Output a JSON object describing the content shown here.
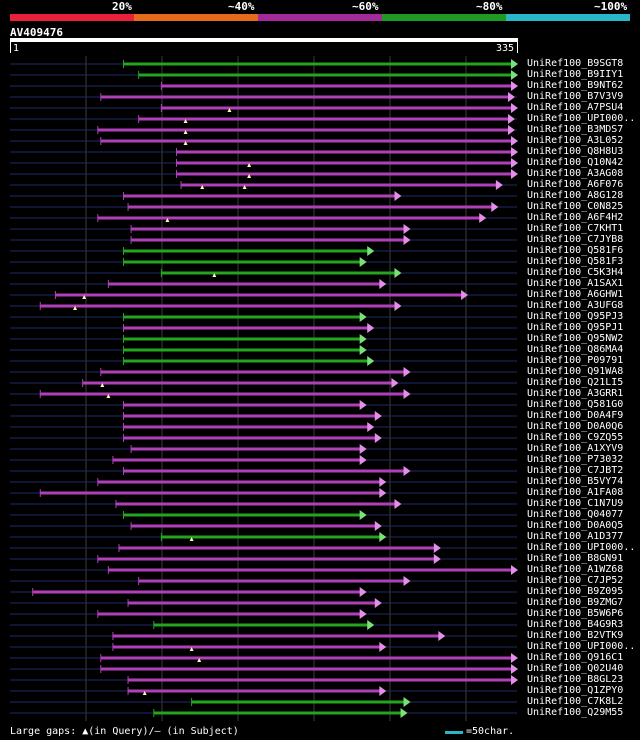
{
  "legend": {
    "segments": [
      {
        "label": "20%",
        "color": "#e8203a"
      },
      {
        "label": "~40%",
        "color": "#e46a1c"
      },
      {
        "label": "~60%",
        "color": "#a32a9a"
      },
      {
        "label": "~80%",
        "color": "#1f9a22"
      },
      {
        "label": "~100%",
        "color": "#29b6c6"
      }
    ]
  },
  "query": {
    "id": "AV409476",
    "start": "1",
    "end": "335"
  },
  "hits": [
    {
      "label": "UniRef100_B9SGT8",
      "color": "green",
      "start": 75,
      "end": 335,
      "gaps": []
    },
    {
      "label": "UniRef100_B9IIY1",
      "color": "green",
      "start": 85,
      "end": 335,
      "gaps": []
    },
    {
      "label": "UniRef100_B9NT62",
      "color": "magenta",
      "start": 100,
      "end": 335,
      "gaps": []
    },
    {
      "label": "UniRef100_B7V3V9",
      "color": "magenta",
      "start": 60,
      "end": 333,
      "gaps": []
    },
    {
      "label": "UniRef100_A7PSU4",
      "color": "magenta",
      "start": 100,
      "end": 335,
      "gaps": [
        145
      ]
    },
    {
      "label": "UniRef100_UPI000..",
      "color": "magenta",
      "start": 85,
      "end": 333,
      "gaps": [
        116
      ]
    },
    {
      "label": "UniRef100_B3MDS7",
      "color": "magenta",
      "start": 58,
      "end": 333,
      "gaps": [
        116
      ]
    },
    {
      "label": "UniRef100_A3L052",
      "color": "magenta",
      "start": 60,
      "end": 335,
      "gaps": [
        116
      ]
    },
    {
      "label": "UniRef100_Q8H8U3",
      "color": "magenta",
      "start": 110,
      "end": 335,
      "gaps": []
    },
    {
      "label": "UniRef100_Q10N42",
      "color": "magenta",
      "start": 110,
      "end": 335,
      "gaps": [
        158
      ]
    },
    {
      "label": "UniRef100_A3AG08",
      "color": "magenta",
      "start": 110,
      "end": 335,
      "gaps": [
        158
      ]
    },
    {
      "label": "UniRef100_A6F076",
      "color": "magenta",
      "start": 113,
      "end": 325,
      "gaps": [
        127,
        155
      ]
    },
    {
      "label": "UniRef100_A8G128",
      "color": "magenta",
      "start": 75,
      "end": 258,
      "gaps": []
    },
    {
      "label": "UniRef100_C0N825",
      "color": "magenta",
      "start": 78,
      "end": 322,
      "gaps": []
    },
    {
      "label": "UniRef100_A6F4H2",
      "color": "magenta",
      "start": 58,
      "end": 314,
      "gaps": [
        104
      ]
    },
    {
      "label": "UniRef100_C7KHT1",
      "color": "magenta",
      "start": 80,
      "end": 264,
      "gaps": []
    },
    {
      "label": "UniRef100_C7JYB8",
      "color": "magenta",
      "start": 80,
      "end": 264,
      "gaps": []
    },
    {
      "label": "UniRef100_Q581F6",
      "color": "green",
      "start": 75,
      "end": 240,
      "gaps": []
    },
    {
      "label": "UniRef100_Q581F3",
      "color": "green",
      "start": 75,
      "end": 235,
      "gaps": []
    },
    {
      "label": "UniRef100_C5K3H4",
      "color": "green",
      "start": 100,
      "end": 258,
      "gaps": [
        135
      ]
    },
    {
      "label": "UniRef100_A1SAX1",
      "color": "magenta",
      "start": 65,
      "end": 248,
      "gaps": []
    },
    {
      "label": "UniRef100_A6GHW1",
      "color": "magenta",
      "start": 30,
      "end": 302,
      "gaps": [
        49
      ]
    },
    {
      "label": "UniRef100_A3UFG8",
      "color": "magenta",
      "start": 20,
      "end": 258,
      "gaps": [
        43
      ]
    },
    {
      "label": "UniRef100_Q95PJ3",
      "color": "green",
      "start": 75,
      "end": 235,
      "gaps": []
    },
    {
      "label": "UniRef100_Q95PJ1",
      "color": "magenta",
      "start": 75,
      "end": 240,
      "gaps": []
    },
    {
      "label": "UniRef100_Q95NW2",
      "color": "green",
      "start": 75,
      "end": 235,
      "gaps": []
    },
    {
      "label": "UniRef100_Q86MA4",
      "color": "green",
      "start": 75,
      "end": 235,
      "gaps": []
    },
    {
      "label": "UniRef100_P09791",
      "color": "green",
      "start": 75,
      "end": 240,
      "gaps": []
    },
    {
      "label": "UniRef100_Q91WA8",
      "color": "magenta",
      "start": 60,
      "end": 264,
      "gaps": []
    },
    {
      "label": "UniRef100_Q21LI5",
      "color": "magenta",
      "start": 48,
      "end": 256,
      "gaps": [
        61
      ]
    },
    {
      "label": "UniRef100_A3GRR1",
      "color": "magenta",
      "start": 20,
      "end": 264,
      "gaps": [
        65
      ]
    },
    {
      "label": "UniRef100_Q581G0",
      "color": "magenta",
      "start": 75,
      "end": 235,
      "gaps": []
    },
    {
      "label": "UniRef100_D0A4F9",
      "color": "magenta",
      "start": 75,
      "end": 245,
      "gaps": []
    },
    {
      "label": "UniRef100_D0A0Q6",
      "color": "magenta",
      "start": 75,
      "end": 240,
      "gaps": []
    },
    {
      "label": "UniRef100_C9ZQ55",
      "color": "magenta",
      "start": 75,
      "end": 245,
      "gaps": []
    },
    {
      "label": "UniRef100_A1XYV9",
      "color": "magenta",
      "start": 80,
      "end": 235,
      "gaps": []
    },
    {
      "label": "UniRef100_P73032",
      "color": "magenta",
      "start": 68,
      "end": 235,
      "gaps": []
    },
    {
      "label": "UniRef100_C7JBT2",
      "color": "magenta",
      "start": 75,
      "end": 264,
      "gaps": []
    },
    {
      "label": "UniRef100_B5VY74",
      "color": "magenta",
      "start": 58,
      "end": 248,
      "gaps": []
    },
    {
      "label": "UniRef100_A1FA08",
      "color": "magenta",
      "start": 20,
      "end": 248,
      "gaps": []
    },
    {
      "label": "UniRef100_C1N7U9",
      "color": "magenta",
      "start": 70,
      "end": 258,
      "gaps": []
    },
    {
      "label": "UniRef100_Q04077",
      "color": "green",
      "start": 75,
      "end": 235,
      "gaps": []
    },
    {
      "label": "UniRef100_D0A0Q5",
      "color": "magenta",
      "start": 80,
      "end": 245,
      "gaps": []
    },
    {
      "label": "UniRef100_A1D377",
      "color": "green",
      "start": 100,
      "end": 248,
      "gaps": [
        120
      ]
    },
    {
      "label": "UniRef100_UPI000..",
      "color": "magenta",
      "start": 72,
      "end": 284,
      "gaps": []
    },
    {
      "label": "UniRef100_B8GN91",
      "color": "magenta",
      "start": 58,
      "end": 284,
      "gaps": []
    },
    {
      "label": "UniRef100_A1WZ68",
      "color": "magenta",
      "start": 65,
      "end": 335,
      "gaps": []
    },
    {
      "label": "UniRef100_C7JP52",
      "color": "magenta",
      "start": 85,
      "end": 264,
      "gaps": []
    },
    {
      "label": "UniRef100_B9Z095",
      "color": "magenta",
      "start": 15,
      "end": 235,
      "gaps": []
    },
    {
      "label": "UniRef100_B9ZMG7",
      "color": "magenta",
      "start": 78,
      "end": 245,
      "gaps": []
    },
    {
      "label": "UniRef100_B5W6P6",
      "color": "magenta",
      "start": 58,
      "end": 235,
      "gaps": []
    },
    {
      "label": "UniRef100_B4G9R3",
      "color": "green",
      "start": 95,
      "end": 240,
      "gaps": []
    },
    {
      "label": "UniRef100_B2VTK9",
      "color": "magenta",
      "start": 68,
      "end": 287,
      "gaps": []
    },
    {
      "label": "UniRef100_UPI000..",
      "color": "magenta",
      "start": 68,
      "end": 248,
      "gaps": [
        120
      ]
    },
    {
      "label": "UniRef100_Q916C1",
      "color": "magenta",
      "start": 60,
      "end": 335,
      "gaps": [
        125
      ]
    },
    {
      "label": "UniRef100_Q02U40",
      "color": "magenta",
      "start": 60,
      "end": 335,
      "gaps": []
    },
    {
      "label": "UniRef100_B8GL23",
      "color": "magenta",
      "start": 78,
      "end": 335,
      "gaps": []
    },
    {
      "label": "UniRef100_Q1ZPY0",
      "color": "magenta",
      "start": 78,
      "end": 248,
      "gaps": [
        89
      ]
    },
    {
      "label": "UniRef100_C7K8L2",
      "color": "green",
      "start": 120,
      "end": 264,
      "gaps": []
    },
    {
      "label": "UniRef100_Q29M55",
      "color": "green",
      "start": 95,
      "end": 262,
      "gaps": []
    }
  ],
  "footer": {
    "gap_text": "Large gaps: ▲(in Query)/– (in Subject)",
    "scale_text": "=50char."
  },
  "colors": {
    "green": "#22a51f",
    "magenta": "#b040b8",
    "arrow_green": "#7ce07a",
    "arrow_magenta": "#e38ee8",
    "baseline": "#1e2a66",
    "gridline": "#3d3d3d",
    "gap_marker": "#fff7b0"
  }
}
